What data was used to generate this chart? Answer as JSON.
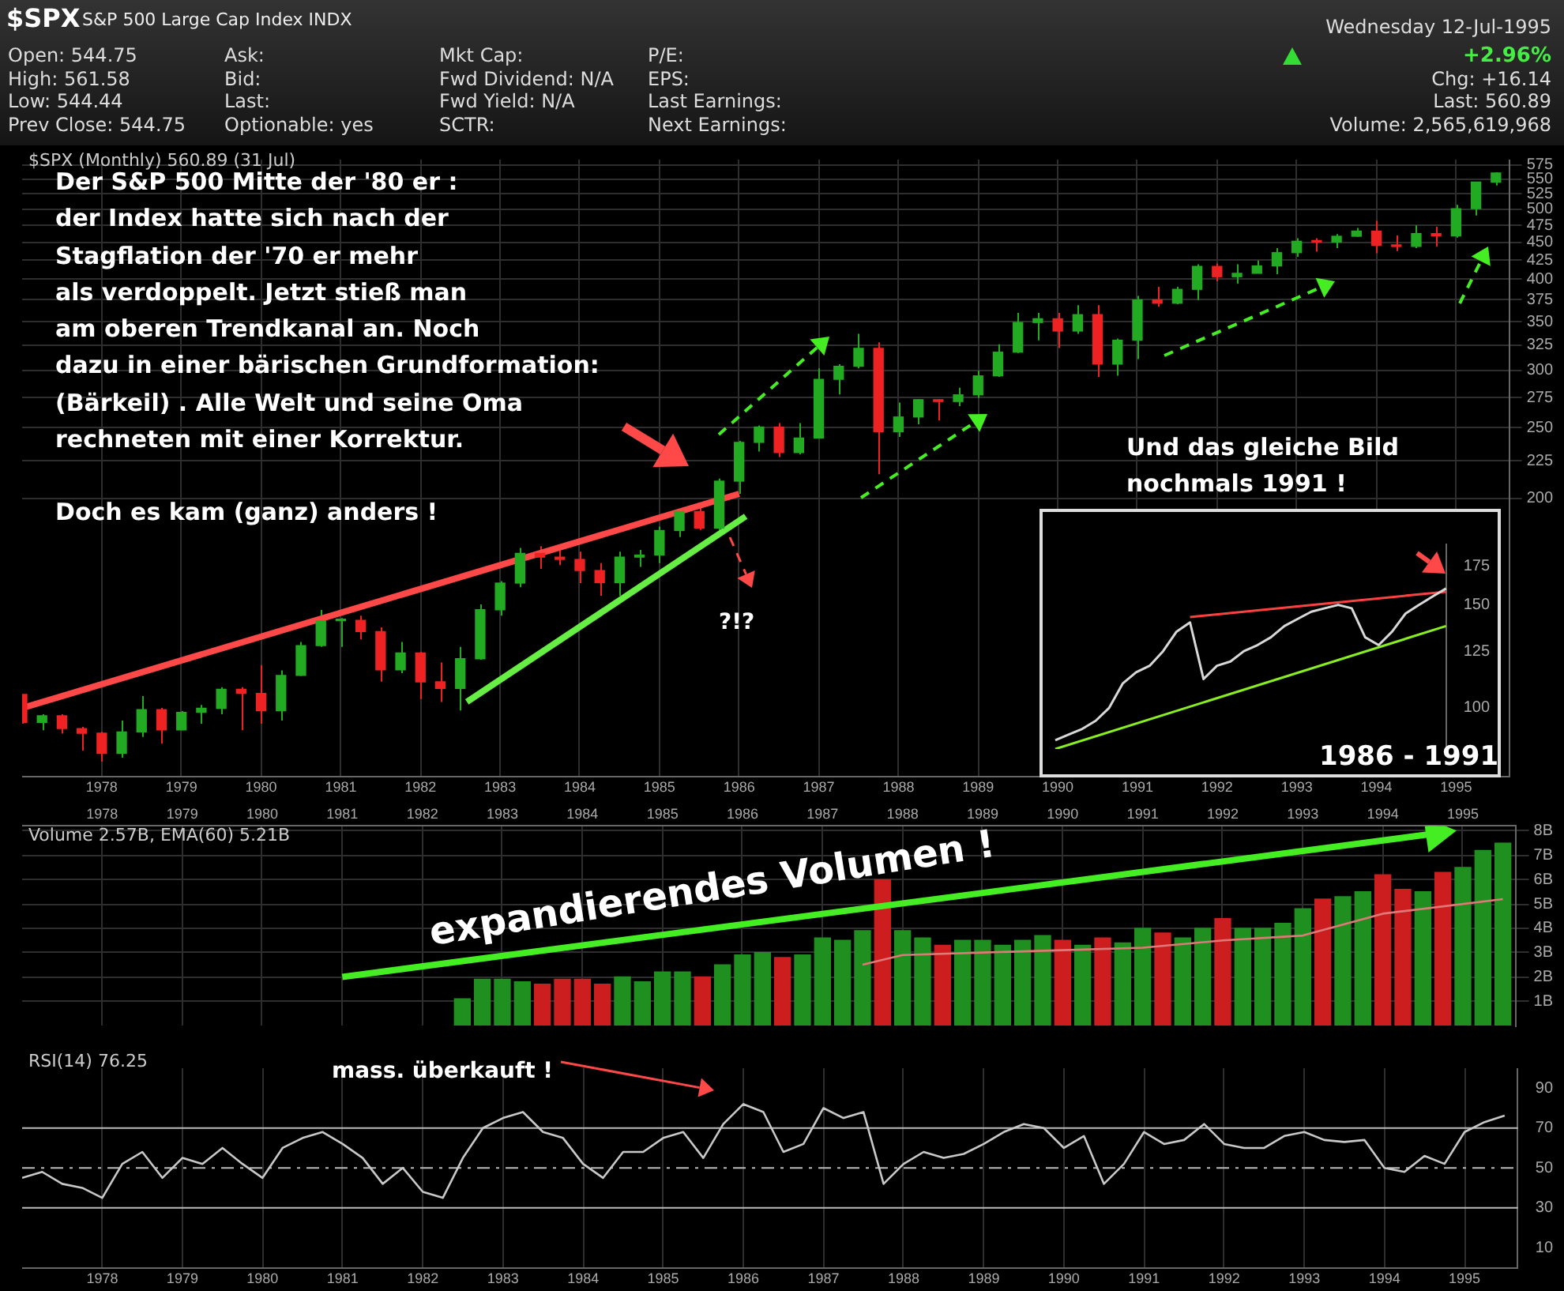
{
  "chart_data": [
    {
      "type": "other",
      "title": "$SPX",
      "subtitle": "S&P 500 Large Cap Index INDX",
      "annotations": [
        "Open: 544.75",
        "High: 561.58",
        "Low: 544.44",
        "Prev Close: 544.75",
        "Ask:",
        "Bid:",
        "Last:",
        "Optionable: yes",
        "Mkt Cap:",
        "Fwd Dividend: N/A",
        "Fwd Yield: N/A",
        "SCTR:",
        "P/E:",
        "EPS:",
        "Last Earnings:",
        "Next Earnings:",
        "Wednesday 12-Jul-1995",
        "+2.96%",
        "Chg: +16.14",
        "Last: 560.89",
        "Volume: 2,565,619,968"
      ]
    },
    {
      "type": "candlestick",
      "title": "$SPX (Monthly) 560.89 (31 Jul)",
      "log": "y",
      "grid": true,
      "xlim": [
        "1977-01",
        "1995-09"
      ],
      "xticks": [
        "1978",
        "1979",
        "1980",
        "1981",
        "1982",
        "1983",
        "1984",
        "1985",
        "1986",
        "1987",
        "1988",
        "1989",
        "1990",
        "1991",
        "1992",
        "1993",
        "1994",
        "1995"
      ],
      "ylim": [
        83,
        585
      ],
      "yticks": [
        200,
        225,
        250,
        275,
        300,
        325,
        350,
        375,
        400,
        425,
        450,
        475,
        500,
        525,
        550,
        575
      ],
      "x": [
        "1977-01",
        "1977-04",
        "1977-07",
        "1977-10",
        "1978-01",
        "1978-04",
        "1978-07",
        "1978-10",
        "1979-01",
        "1979-04",
        "1979-07",
        "1979-10",
        "1980-01",
        "1980-04",
        "1980-07",
        "1980-10",
        "1981-01",
        "1981-04",
        "1981-07",
        "1981-10",
        "1982-01",
        "1982-04",
        "1982-07",
        "1982-10",
        "1983-01",
        "1983-04",
        "1983-07",
        "1983-10",
        "1984-01",
        "1984-04",
        "1984-07",
        "1984-10",
        "1985-01",
        "1985-04",
        "1985-07",
        "1985-10",
        "1986-01",
        "1986-04",
        "1986-07",
        "1986-10",
        "1987-01",
        "1987-04",
        "1987-07",
        "1987-10",
        "1988-01",
        "1988-04",
        "1988-07",
        "1988-10",
        "1989-01",
        "1989-04",
        "1989-07",
        "1989-10",
        "1990-01",
        "1990-04",
        "1990-07",
        "1990-10",
        "1991-01",
        "1991-04",
        "1991-07",
        "1991-10",
        "1992-01",
        "1992-04",
        "1992-07",
        "1992-10",
        "1993-01",
        "1993-04",
        "1993-07",
        "1993-10",
        "1994-01",
        "1994-04",
        "1994-07",
        "1994-10",
        "1995-01",
        "1995-04",
        "1995-07"
      ],
      "ohlc": [
        [
          107.5,
          107.5,
          98,
          98.4
        ],
        [
          98.4,
          101,
          96,
          100.5
        ],
        [
          100.5,
          101,
          95,
          96.5
        ],
        [
          96.5,
          97,
          90,
          95.1
        ],
        [
          95.1,
          95.5,
          86.9,
          89.2
        ],
        [
          89.2,
          99,
          88,
          95.5
        ],
        [
          95.5,
          107,
          94,
          102.5
        ],
        [
          102.5,
          103,
          92,
          96.1
        ],
        [
          96.1,
          102,
          96,
          101.6
        ],
        [
          101.6,
          104,
          98,
          102.9
        ],
        [
          102.9,
          110,
          101,
          109.3
        ],
        [
          109.3,
          110,
          96,
          107.9
        ],
        [
          107.9,
          118,
          98,
          102.1
        ],
        [
          102.1,
          116,
          99,
          114.2
        ],
        [
          114.2,
          127,
          114,
          125.5
        ],
        [
          125.5,
          140.5,
          125,
          135.8
        ],
        [
          135.8,
          137,
          125,
          136
        ],
        [
          136,
          138,
          128,
          131.2
        ],
        [
          131.2,
          133,
          112,
          116.2
        ],
        [
          116.2,
          127,
          115,
          122.6
        ],
        [
          122.6,
          123,
          106,
          111.9
        ],
        [
          111.9,
          119,
          105,
          109.6
        ],
        [
          109.6,
          125,
          102.2,
          120.4
        ],
        [
          120.4,
          143,
          120,
          140.6
        ],
        [
          140.6,
          154,
          138,
          153
        ],
        [
          153,
          171,
          151,
          168.1
        ],
        [
          168.1,
          172,
          160,
          166.1
        ],
        [
          166.1,
          172,
          162,
          164.9
        ],
        [
          164.9,
          169,
          153,
          159.2
        ],
        [
          159.2,
          163,
          147,
          153.2
        ],
        [
          153.2,
          169,
          147,
          166.1
        ],
        [
          166.1,
          170,
          161,
          167.2
        ],
        [
          167.2,
          183,
          163,
          180.7
        ],
        [
          180.7,
          193,
          177,
          191.9
        ],
        [
          191.9,
          197,
          181,
          182.1
        ],
        [
          182.1,
          213,
          181,
          211.3
        ],
        [
          211.3,
          240,
          203,
          238.9
        ],
        [
          238.9,
          252,
          232,
          250.8
        ],
        [
          250.8,
          254,
          228,
          231.3
        ],
        [
          231.3,
          254,
          230,
          242.2
        ],
        [
          242.2,
          302,
          242,
          291.7
        ],
        [
          291.7,
          306,
          278,
          304
        ],
        [
          304,
          337,
          302,
          321.8
        ],
        [
          321.8,
          328,
          216,
          247.1
        ],
        [
          247.1,
          271,
          243,
          258.9
        ],
        [
          258.9,
          274,
          253,
          273.5
        ],
        [
          273.5,
          274,
          256,
          271.9
        ],
        [
          271.9,
          284,
          268,
          277.7
        ],
        [
          277.7,
          300,
          275,
          294.9
        ],
        [
          294.9,
          326,
          294,
          317.9
        ],
        [
          317.9,
          360,
          317,
          349.2
        ],
        [
          349.2,
          360,
          330,
          353.4
        ],
        [
          353.4,
          360,
          322,
          339.9
        ],
        [
          339.9,
          369,
          337,
          358
        ],
        [
          358,
          369,
          294,
          306.1
        ],
        [
          306.1,
          332,
          295,
          330.2
        ],
        [
          330.2,
          380,
          311,
          375.2
        ],
        [
          375.2,
          391,
          367,
          371.2
        ],
        [
          371.2,
          391,
          370,
          387.9
        ],
        [
          387.9,
          420,
          375,
          417.1
        ],
        [
          417.1,
          421,
          398,
          403.7
        ],
        [
          403.7,
          420,
          395,
          408.1
        ],
        [
          408.1,
          425,
          408,
          417.8
        ],
        [
          417.8,
          442,
          407,
          435.7
        ],
        [
          435.7,
          456,
          430,
          451.7
        ],
        [
          451.7,
          456,
          437,
          450.5
        ],
        [
          450.5,
          462,
          442,
          458.9
        ],
        [
          458.9,
          471,
          458,
          466.5
        ],
        [
          466.5,
          482,
          435,
          445.8
        ],
        [
          445.8,
          460,
          438,
          444.3
        ],
        [
          444.3,
          475,
          442,
          462.7
        ],
        [
          462.7,
          473,
          444,
          459.3
        ],
        [
          459.3,
          507,
          457,
          500.7
        ],
        [
          500.7,
          545,
          490,
          544.75
        ],
        [
          544.75,
          562,
          539,
          560.89
        ]
      ],
      "series": [
        {
          "type": "line",
          "color": "#ff4848",
          "x": [
            "1977-01",
            "1986-01"
          ],
          "values": [
            103,
            203
          ]
        },
        {
          "type": "line",
          "color": "#66ee44",
          "x": [
            "1982-08",
            "1986-02"
          ],
          "values": [
            105,
            189
          ]
        }
      ],
      "annotations": [
        "Der S&P 500 Mitte der '80 er :\nder Index hatte sich nach der\nStagflation der '70 er mehr\nals verdoppelt. Jetzt stieß man\nam oberen Trendkanal an. Noch\ndazu in einer bärischen Grundformation:\n(Bärkeil) . Alle Welt und seine Oma\nrechneten mit einer Korrektur.\n\nDoch es kam (ganz) anders !",
        "?!?",
        "Und das gleiche Bild\nnochmals 1991 !"
      ]
    },
    {
      "type": "bar",
      "title": "Volume 2.57B, EMA(60) 5.21B",
      "grid": true,
      "xlim": [
        "1977-01",
        "1995-09"
      ],
      "xticks": [
        "1978",
        "1979",
        "1980",
        "1981",
        "1982",
        "1983",
        "1984",
        "1985",
        "1986",
        "1987",
        "1988",
        "1989",
        "1990",
        "1991",
        "1992",
        "1993",
        "1994",
        "1995"
      ],
      "ylim": [
        0,
        8.2
      ],
      "yticks": [
        {
          "value": 1,
          "label": "1B"
        },
        {
          "value": 2,
          "label": "2B"
        },
        {
          "value": 3,
          "label": "3B"
        },
        {
          "value": 4,
          "label": "4B"
        },
        {
          "value": 5,
          "label": "5B"
        },
        {
          "value": 6,
          "label": "6B"
        },
        {
          "value": 7,
          "label": "7B"
        },
        {
          "value": 8,
          "label": "8B"
        }
      ],
      "series": [
        {
          "type": "bar",
          "x": [
            "1982-07",
            "1982-10",
            "1983-01",
            "1983-04",
            "1983-07",
            "1983-10",
            "1984-01",
            "1984-04",
            "1984-07",
            "1984-10",
            "1985-01",
            "1985-04",
            "1985-07",
            "1985-10",
            "1986-01",
            "1986-04",
            "1986-07",
            "1986-10",
            "1987-01",
            "1987-04",
            "1987-07",
            "1987-10",
            "1988-01",
            "1988-04",
            "1988-07",
            "1988-10",
            "1989-01",
            "1989-04",
            "1989-07",
            "1989-10",
            "1990-01",
            "1990-04",
            "1990-07",
            "1990-10",
            "1991-01",
            "1991-04",
            "1991-07",
            "1991-10",
            "1992-01",
            "1992-04",
            "1992-07",
            "1992-10",
            "1993-01",
            "1993-04",
            "1993-07",
            "1993-10",
            "1994-01",
            "1994-04",
            "1994-07",
            "1994-10",
            "1995-01",
            "1995-04",
            "1995-07"
          ],
          "values": [
            1.1,
            1.9,
            1.9,
            1.8,
            1.7,
            1.9,
            1.9,
            1.7,
            2.0,
            1.8,
            2.2,
            2.2,
            2.0,
            2.5,
            2.9,
            3.0,
            2.8,
            2.9,
            3.6,
            3.5,
            3.9,
            6.0,
            3.9,
            3.6,
            3.3,
            3.5,
            3.5,
            3.3,
            3.5,
            3.7,
            3.5,
            3.3,
            3.6,
            3.4,
            4.0,
            3.8,
            3.6,
            4.0,
            4.4,
            4.0,
            4.0,
            4.2,
            4.8,
            5.2,
            5.3,
            5.5,
            6.2,
            5.6,
            5.5,
            6.3,
            6.5,
            7.2,
            7.5
          ],
          "colors": [
            "#1f8f1f",
            "#1f8f1f",
            "#1f8f1f",
            "#1f8f1f",
            "#cc1e1e",
            "#cc1e1e",
            "#cc1e1e",
            "#cc1e1e",
            "#1f8f1f",
            "#1f8f1f",
            "#1f8f1f",
            "#1f8f1f",
            "#cc1e1e",
            "#1f8f1f",
            "#1f8f1f",
            "#1f8f1f",
            "#cc1e1e",
            "#1f8f1f",
            "#1f8f1f",
            "#1f8f1f",
            "#1f8f1f",
            "#cc1e1e",
            "#1f8f1f",
            "#1f8f1f",
            "#cc1e1e",
            "#1f8f1f",
            "#1f8f1f",
            "#1f8f1f",
            "#1f8f1f",
            "#1f8f1f",
            "#cc1e1e",
            "#1f8f1f",
            "#cc1e1e",
            "#1f8f1f",
            "#1f8f1f",
            "#cc1e1e",
            "#1f8f1f",
            "#1f8f1f",
            "#cc1e1e",
            "#1f8f1f",
            "#1f8f1f",
            "#1f8f1f",
            "#1f8f1f",
            "#cc1e1e",
            "#1f8f1f",
            "#1f8f1f",
            "#cc1e1e",
            "#cc1e1e",
            "#1f8f1f",
            "#cc1e1e",
            "#1f8f1f",
            "#1f8f1f",
            "#1f8f1f"
          ]
        },
        {
          "type": "line",
          "color": "#44ee22",
          "marker": "triangle",
          "x": [
            "1981-01",
            "1994-09"
          ],
          "values": [
            2.0,
            7.9
          ]
        },
        {
          "type": "line",
          "color": "#e07878",
          "x": [
            "1987-07",
            "1988-01",
            "1989-01",
            "1990-01",
            "1991-01",
            "1992-01",
            "1993-01",
            "1994-01",
            "1995-07"
          ],
          "values": [
            2.5,
            2.9,
            3.0,
            3.1,
            3.2,
            3.5,
            3.7,
            4.6,
            5.2
          ]
        }
      ],
      "annotations": [
        "expandierendes Volumen !"
      ]
    },
    {
      "type": "line",
      "title": "RSI(14) 76.25",
      "grid": "x",
      "marker": "none",
      "xlim": [
        "1977-01",
        "1995-09"
      ],
      "xticks": [
        "1978",
        "1979",
        "1980",
        "1981",
        "1982",
        "1983",
        "1984",
        "1985",
        "1986",
        "1987",
        "1988",
        "1989",
        "1990",
        "1991",
        "1992",
        "1993",
        "1994",
        "1995"
      ],
      "ylim": [
        0,
        100
      ],
      "yticks": [
        10,
        30,
        50,
        70,
        90
      ],
      "x": [
        "1977-01",
        "1977-04",
        "1977-07",
        "1977-10",
        "1978-01",
        "1978-04",
        "1978-07",
        "1978-10",
        "1979-01",
        "1979-04",
        "1979-07",
        "1979-10",
        "1980-01",
        "1980-04",
        "1980-07",
        "1980-10",
        "1981-01",
        "1981-04",
        "1981-07",
        "1981-10",
        "1982-01",
        "1982-04",
        "1982-07",
        "1982-10",
        "1983-01",
        "1983-04",
        "1983-07",
        "1983-10",
        "1984-01",
        "1984-04",
        "1984-07",
        "1984-10",
        "1985-01",
        "1985-04",
        "1985-07",
        "1985-10",
        "1986-01",
        "1986-04",
        "1986-07",
        "1986-10",
        "1987-01",
        "1987-04",
        "1987-07",
        "1987-10",
        "1988-01",
        "1988-04",
        "1988-07",
        "1988-10",
        "1989-01",
        "1989-04",
        "1989-07",
        "1989-10",
        "1990-01",
        "1990-04",
        "1990-07",
        "1990-10",
        "1991-01",
        "1991-04",
        "1991-07",
        "1991-10",
        "1992-01",
        "1992-04",
        "1992-07",
        "1992-10",
        "1993-01",
        "1993-04",
        "1993-07",
        "1993-10",
        "1994-01",
        "1994-04",
        "1994-07",
        "1994-10",
        "1995-01",
        "1995-04",
        "1995-07"
      ],
      "series": [
        {
          "color": "#c8c8c8",
          "values": [
            45,
            48,
            42,
            40,
            35,
            52,
            58,
            45,
            55,
            52,
            60,
            52,
            45,
            60,
            65,
            68,
            62,
            55,
            42,
            50,
            38,
            35,
            55,
            70,
            75,
            78,
            68,
            65,
            52,
            45,
            58,
            58,
            65,
            68,
            55,
            72,
            82,
            78,
            58,
            62,
            80,
            75,
            78,
            42,
            52,
            58,
            55,
            57,
            62,
            68,
            72,
            70,
            60,
            66,
            42,
            52,
            68,
            62,
            64,
            72,
            62,
            60,
            60,
            66,
            68,
            64,
            63,
            64,
            50,
            48,
            56,
            52,
            68,
            73,
            76.25
          ]
        }
      ],
      "ref_lines": [
        {
          "axis": "y",
          "value": 70,
          "color": "#bbbbbb",
          "line_style": "solid"
        },
        {
          "axis": "y",
          "value": 50,
          "color": "#bbbbbb",
          "line_style": "dashed"
        },
        {
          "axis": "y",
          "value": 30,
          "color": "#bbbbbb",
          "line_style": "solid"
        }
      ],
      "annotations": [
        "mass. überkauft !"
      ]
    },
    {
      "type": "line",
      "log": "y",
      "marker": "none",
      "tick_labels": "y",
      "ylim": [
        85,
        191
      ],
      "yticks": [
        100,
        125,
        150,
        175
      ],
      "categories": [
        null,
        null,
        null,
        null,
        null,
        null,
        null,
        null,
        null,
        null,
        null,
        null,
        null,
        null,
        null,
        null,
        null,
        null,
        null,
        null,
        null,
        null,
        null,
        null,
        null,
        null,
        null,
        null,
        null,
        null
      ],
      "series": [
        {
          "color": "#d8d8d8",
          "values": [
            88,
            90,
            92,
            95,
            100,
            110,
            115,
            118,
            125,
            135,
            140,
            112,
            118,
            120,
            125,
            128,
            132,
            138,
            142,
            146,
            148,
            150,
            148,
            132,
            128,
            135,
            145,
            150,
            155,
            160
          ]
        },
        {
          "color": "#ff4040",
          "values": [
            null,
            null,
            null,
            null,
            null,
            null,
            null,
            null,
            null,
            null,
            143,
            null,
            null,
            null,
            null,
            null,
            null,
            null,
            null,
            null,
            null,
            null,
            null,
            null,
            null,
            null,
            null,
            null,
            null,
            158
          ]
        },
        {
          "color": "#88ee22",
          "values": [
            85,
            null,
            null,
            null,
            null,
            null,
            null,
            null,
            null,
            null,
            null,
            null,
            null,
            null,
            null,
            null,
            null,
            null,
            null,
            null,
            null,
            null,
            null,
            null,
            null,
            null,
            null,
            null,
            null,
            138
          ]
        }
      ],
      "annotations": [
        "1986 - 1991"
      ]
    }
  ]
}
